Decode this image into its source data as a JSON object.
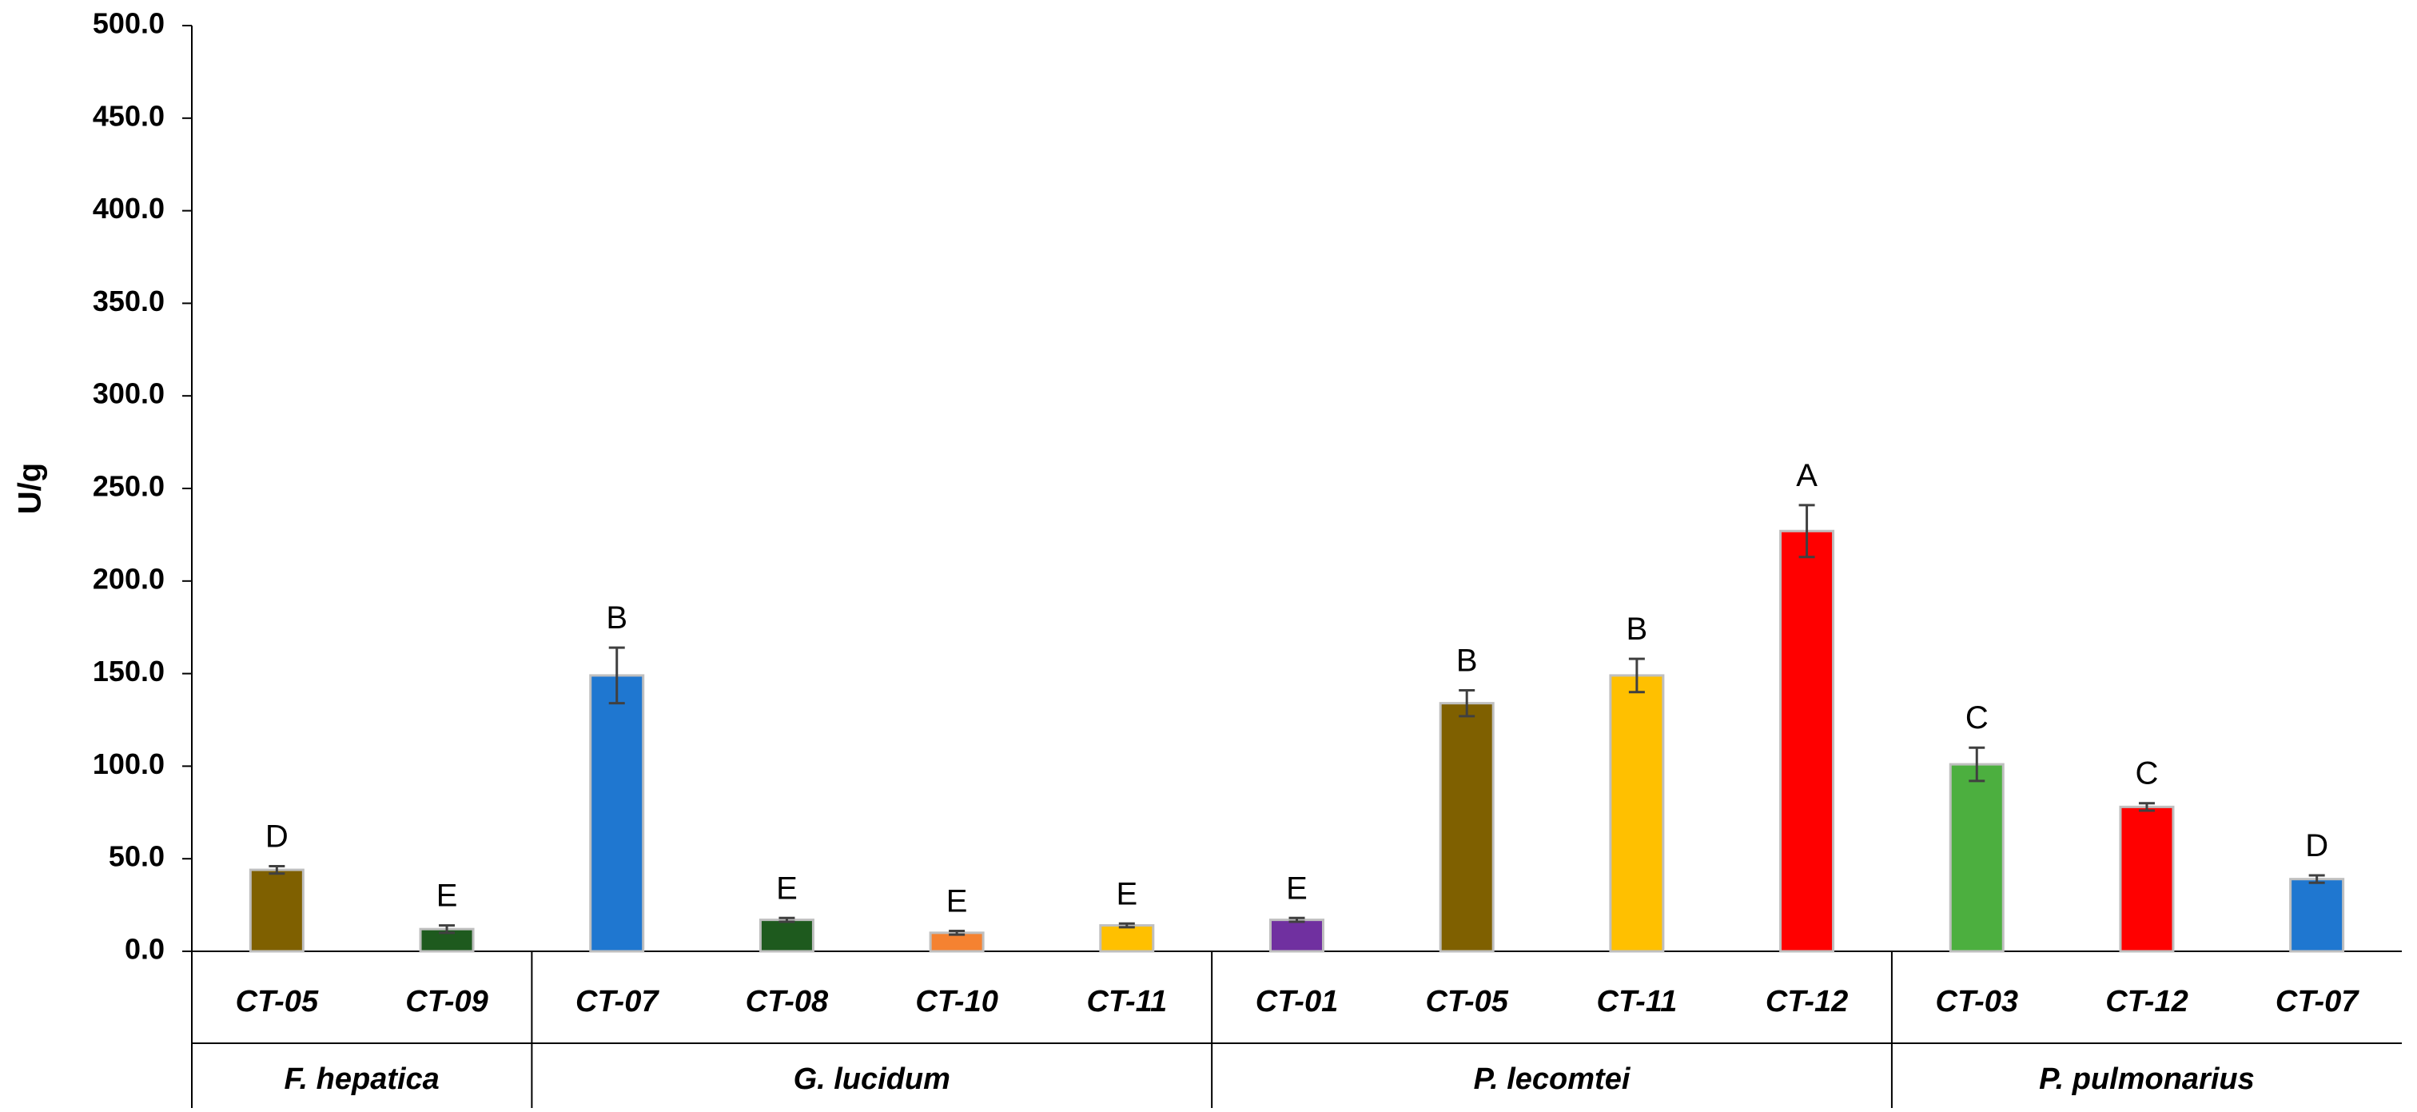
{
  "chart_data": {
    "type": "bar",
    "title": "",
    "xlabel": "",
    "ylabel": "U/g",
    "ylim": [
      0,
      500
    ],
    "yticks": [
      "0.0",
      "50.0",
      "100.0",
      "150.0",
      "200.0",
      "250.0",
      "300.0",
      "350.0",
      "400.0",
      "450.0",
      "500.0"
    ],
    "grid": false,
    "legend": "none",
    "groups": [
      {
        "name": "F. hepatica",
        "bars": [
          {
            "label": "CT-05",
            "value": 44,
            "error": 2,
            "letter": "D",
            "color": "#7f6000"
          },
          {
            "label": "CT-09",
            "value": 12,
            "error": 2,
            "letter": "E",
            "color": "#1e5a1e"
          }
        ]
      },
      {
        "name": "G. lucidum",
        "bars": [
          {
            "label": "CT-07",
            "value": 149,
            "error": 15,
            "letter": "B",
            "color": "#1f77d0"
          },
          {
            "label": "CT-08",
            "value": 17,
            "error": 1,
            "letter": "E",
            "color": "#1e5a1e"
          },
          {
            "label": "CT-10",
            "value": 10,
            "error": 1,
            "letter": "E",
            "color": "#f58231"
          },
          {
            "label": "CT-11",
            "value": 14,
            "error": 1,
            "letter": "E",
            "color": "#ffc000"
          }
        ]
      },
      {
        "name": "P. lecomtei",
        "bars": [
          {
            "label": "CT-01",
            "value": 17,
            "error": 1,
            "letter": "E",
            "color": "#7030a0"
          },
          {
            "label": "CT-05",
            "value": 134,
            "error": 7,
            "letter": "B",
            "color": "#7f6000"
          },
          {
            "label": "CT-11",
            "value": 149,
            "error": 9,
            "letter": "B",
            "color": "#ffc000"
          },
          {
            "label": "CT-12",
            "value": 227,
            "error": 14,
            "letter": "A",
            "color": "#ff0000"
          }
        ]
      },
      {
        "name": "P. pulmonarius",
        "bars": [
          {
            "label": "CT-03",
            "value": 101,
            "error": 9,
            "letter": "C",
            "color": "#4caf3f"
          },
          {
            "label": "CT-12",
            "value": 78,
            "error": 2,
            "letter": "C",
            "color": "#ff0000"
          },
          {
            "label": "CT-07",
            "value": 39,
            "error": 2,
            "letter": "D",
            "color": "#1f77d0"
          }
        ]
      }
    ]
  }
}
